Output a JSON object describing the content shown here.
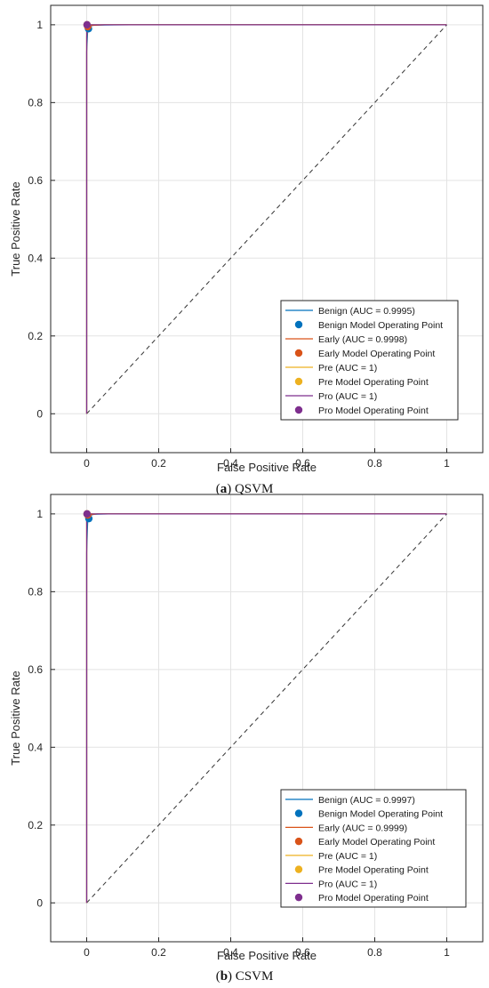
{
  "chart_data": [
    {
      "type": "line",
      "xlabel": "False Positive Rate",
      "ylabel": "True Positive Rate",
      "xlim": [
        -0.1,
        1.1
      ],
      "ylim": [
        -0.1,
        1.05
      ],
      "xticks": [
        "0",
        "0.2",
        "0.4",
        "0.6",
        "0.8",
        "1"
      ],
      "yticks": [
        "0",
        "0.2",
        "0.4",
        "0.6",
        "0.8",
        "1"
      ],
      "grid": true,
      "legend_position": "bottom-right",
      "reference_line": {
        "style": "dashed",
        "x": [
          0,
          1
        ],
        "y": [
          0,
          1
        ]
      },
      "caption": {
        "label": "a",
        "text": "QSVM"
      },
      "series": [
        {
          "name": "Benign (AUC = 0.9995)",
          "color": "#0072BD",
          "x": [
            0,
            0,
            0.002,
            0.003,
            0.005,
            0.02,
            0.12,
            1
          ],
          "y": [
            0,
            0.93,
            0.97,
            0.99,
            0.996,
            0.999,
            1,
            1
          ]
        },
        {
          "name": "Early (AUC = 0.9998)",
          "color": "#D95319",
          "x": [
            0,
            0,
            0.002,
            0.005,
            0.05,
            1
          ],
          "y": [
            0,
            0.97,
            0.99,
            0.998,
            1,
            1
          ]
        },
        {
          "name": "Pre (AUC = 1)",
          "color": "#EDB120",
          "x": [
            0,
            0,
            1
          ],
          "y": [
            0,
            1,
            1
          ]
        },
        {
          "name": "Pro (AUC = 1)",
          "color": "#7E2F8E",
          "x": [
            0,
            0,
            1
          ],
          "y": [
            0,
            1,
            1
          ]
        }
      ],
      "operating_points": [
        {
          "name": "Benign Model Operating Point",
          "color": "#0072BD",
          "x": 0.005,
          "y": 0.99
        },
        {
          "name": "Early Model Operating Point",
          "color": "#D95319",
          "x": 0.003,
          "y": 0.995
        },
        {
          "name": "Pre Model Operating Point",
          "color": "#EDB120",
          "x": 0.001,
          "y": 1.0
        },
        {
          "name": "Pro Model Operating Point",
          "color": "#7E2F8E",
          "x": 0.001,
          "y": 1.0
        }
      ]
    },
    {
      "type": "line",
      "xlabel": "False Positive Rate",
      "ylabel": "True Positive Rate",
      "xlim": [
        -0.1,
        1.1
      ],
      "ylim": [
        -0.1,
        1.05
      ],
      "xticks": [
        "0",
        "0.2",
        "0.4",
        "0.6",
        "0.8",
        "1"
      ],
      "yticks": [
        "0",
        "0.2",
        "0.4",
        "0.6",
        "0.8",
        "1"
      ],
      "grid": true,
      "legend_position": "bottom-right",
      "reference_line": {
        "style": "dashed",
        "x": [
          0,
          1
        ],
        "y": [
          0,
          1
        ]
      },
      "caption": {
        "label": "b",
        "text": "CSVM"
      },
      "series": [
        {
          "name": "Benign (AUC = 0.9997)",
          "color": "#0072BD",
          "x": [
            0,
            0,
            0.002,
            0.003,
            0.005,
            0.02,
            0.06,
            1
          ],
          "y": [
            0,
            0.9,
            0.96,
            0.985,
            0.995,
            0.999,
            1,
            1
          ]
        },
        {
          "name": "Early (AUC = 0.9999)",
          "color": "#D95319",
          "x": [
            0,
            0,
            0.003,
            0.03,
            1
          ],
          "y": [
            0,
            0.985,
            0.997,
            1,
            1
          ]
        },
        {
          "name": "Pre (AUC = 1)",
          "color": "#EDB120",
          "x": [
            0,
            0,
            1
          ],
          "y": [
            0,
            1,
            1
          ]
        },
        {
          "name": "Pro (AUC = 1)",
          "color": "#7E2F8E",
          "x": [
            0,
            0,
            1
          ],
          "y": [
            0,
            1,
            1
          ]
        }
      ],
      "operating_points": [
        {
          "name": "Benign Model Operating Point",
          "color": "#0072BD",
          "x": 0.006,
          "y": 0.988
        },
        {
          "name": "Early Model Operating Point",
          "color": "#D95319",
          "x": 0.003,
          "y": 0.997
        },
        {
          "name": "Pre Model Operating Point",
          "color": "#EDB120",
          "x": 0.001,
          "y": 1.0
        },
        {
          "name": "Pro Model Operating Point",
          "color": "#7E2F8E",
          "x": 0.001,
          "y": 1.0
        }
      ]
    }
  ]
}
